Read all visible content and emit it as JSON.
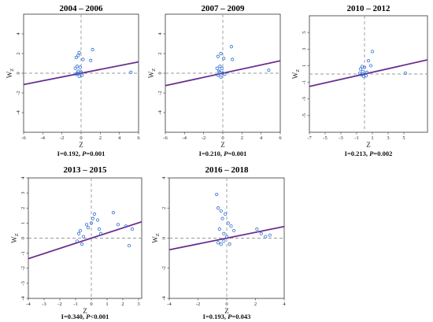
{
  "chart_data": [
    {
      "type": "scatter",
      "title": "2004 – 2006",
      "xlabel": "Z",
      "ylabel": "W",
      "ylabel_sub": "Z",
      "xlim": [
        -6,
        6
      ],
      "ylim": [
        -6,
        6
      ],
      "xticks": [
        "-6",
        "-4",
        "-2",
        "0",
        "2",
        "4",
        "6"
      ],
      "yticks": [
        "-4",
        "-2",
        "0",
        "2",
        "4"
      ],
      "ytick_values": [
        -4,
        -2,
        0,
        2,
        4
      ],
      "slope": 0.192,
      "stat_prefix": "I=0.192, ",
      "stat_p": "P",
      "stat_suffix": "=0.001",
      "points": [
        [
          -0.5,
          1.6
        ],
        [
          -0.3,
          1.8
        ],
        [
          -0.2,
          2.1
        ],
        [
          0.2,
          1.4
        ],
        [
          1.2,
          2.4
        ],
        [
          1.0,
          1.3
        ],
        [
          -0.6,
          0.5
        ],
        [
          -0.4,
          0.7
        ],
        [
          -0.1,
          0.6
        ],
        [
          -0.3,
          0.2
        ],
        [
          -0.5,
          -0.1
        ],
        [
          -0.2,
          -0.3
        ],
        [
          0.0,
          0.1
        ],
        [
          0.1,
          -0.2
        ],
        [
          -0.4,
          0.0
        ],
        [
          5.2,
          0.1
        ]
      ]
    },
    {
      "type": "scatter",
      "title": "2007 – 2009",
      "xlabel": "Z",
      "ylabel": "W",
      "ylabel_sub": "Z",
      "xlim": [
        -6,
        6
      ],
      "ylim": [
        -6,
        6
      ],
      "xticks": [
        "-6",
        "-4",
        "-2",
        "0",
        "2",
        "4",
        "6"
      ],
      "yticks": [
        "-4",
        "-2",
        "0",
        "2",
        "4"
      ],
      "ytick_values": [
        -4,
        -2,
        0,
        2,
        4
      ],
      "slope": 0.21,
      "stat_prefix": "I=0.210, ",
      "stat_p": "P",
      "stat_suffix": "=0.001",
      "points": [
        [
          -0.5,
          1.7
        ],
        [
          -0.2,
          2.0
        ],
        [
          0.1,
          1.5
        ],
        [
          0.9,
          2.7
        ],
        [
          1.0,
          1.4
        ],
        [
          -0.6,
          0.5
        ],
        [
          -0.3,
          0.7
        ],
        [
          -0.1,
          0.5
        ],
        [
          -0.3,
          0.1
        ],
        [
          -0.5,
          -0.2
        ],
        [
          -0.2,
          -0.4
        ],
        [
          0.0,
          0.0
        ],
        [
          0.2,
          -0.1
        ],
        [
          -0.4,
          0.2
        ],
        [
          4.8,
          0.3
        ]
      ]
    },
    {
      "type": "scatter",
      "title": "2010 – 2012",
      "xlabel": "Z",
      "ylabel": "W",
      "ylabel_sub": "Z",
      "xlim": [
        -7,
        8
      ],
      "ylim": [
        -7,
        7
      ],
      "xticks": [
        "-7",
        "-5",
        "-3",
        "-1",
        "1",
        "3",
        "5"
      ],
      "yticks": [
        "-5",
        "-3",
        "-1",
        "1",
        "3",
        "5"
      ],
      "ytick_values": [
        -5,
        -3,
        -1,
        1,
        3,
        5
      ],
      "slope": 0.213,
      "stat_prefix": "I=0.213, ",
      "stat_p": "P",
      "stat_suffix": "=0.002",
      "points": [
        [
          1.0,
          2.7
        ],
        [
          0.5,
          1.6
        ],
        [
          0.8,
          1.0
        ],
        [
          -0.3,
          0.9
        ],
        [
          0.0,
          0.8
        ],
        [
          -0.5,
          0.6
        ],
        [
          -0.2,
          0.3
        ],
        [
          0.3,
          0.2
        ],
        [
          -0.6,
          0.1
        ],
        [
          -0.4,
          -0.1
        ],
        [
          -0.1,
          -0.3
        ],
        [
          0.2,
          -0.2
        ],
        [
          5.2,
          0.1
        ]
      ]
    },
    {
      "type": "scatter",
      "title": "2013 – 2015",
      "xlabel": "Z",
      "ylabel": "W",
      "ylabel_sub": "Z",
      "xlim": [
        -4,
        3.2
      ],
      "ylim": [
        -4,
        4
      ],
      "xticks": [
        "-4",
        "-3",
        "-2",
        "-1",
        "0",
        "1",
        "2",
        "3"
      ],
      "yticks": [
        "-4",
        "-3",
        "-2",
        "-1",
        "0",
        "1",
        "2",
        "3",
        "4"
      ],
      "ytick_values": [
        -4,
        -3,
        -2,
        -1,
        0,
        1,
        2,
        3,
        4
      ],
      "slope": 0.34,
      "stat_prefix": "I=0.340, ",
      "stat_p": "P",
      "stat_suffix": "<0.001",
      "points": [
        [
          -0.7,
          0.5
        ],
        [
          -0.8,
          0.3
        ],
        [
          -0.9,
          -0.2
        ],
        [
          -0.6,
          -0.4
        ],
        [
          -0.5,
          0.1
        ],
        [
          -0.3,
          0.9
        ],
        [
          -0.2,
          0.7
        ],
        [
          0.0,
          1.0
        ],
        [
          0.1,
          1.3
        ],
        [
          0.2,
          1.6
        ],
        [
          0.4,
          1.2
        ],
        [
          0.5,
          0.6
        ],
        [
          0.6,
          0.3
        ],
        [
          1.4,
          1.7
        ],
        [
          1.7,
          0.9
        ],
        [
          2.2,
          0.8
        ],
        [
          2.4,
          -0.5
        ],
        [
          2.6,
          0.6
        ]
      ]
    },
    {
      "type": "scatter",
      "title": "2016 – 2018",
      "xlabel": "Z",
      "ylabel": "W",
      "ylabel_sub": "Z",
      "xlim": [
        -4,
        4
      ],
      "ylim": [
        -4,
        4
      ],
      "xticks": [
        "-4",
        "-2",
        "0",
        "2",
        "4"
      ],
      "yticks": [
        "-4",
        "-2",
        "0",
        "2",
        "4"
      ],
      "ytick_values": [
        -4,
        -2,
        0,
        2,
        4
      ],
      "slope": 0.193,
      "stat_prefix": "I=0.193, ",
      "stat_p": "P",
      "stat_suffix": "=0.043",
      "points": [
        [
          -0.7,
          2.9
        ],
        [
          -0.6,
          2.0
        ],
        [
          -0.4,
          1.8
        ],
        [
          -0.3,
          1.3
        ],
        [
          -0.1,
          1.6
        ],
        [
          0.1,
          1.0
        ],
        [
          0.3,
          0.8
        ],
        [
          0.5,
          0.5
        ],
        [
          -0.5,
          0.6
        ],
        [
          -0.2,
          0.3
        ],
        [
          0.0,
          0.1
        ],
        [
          -0.6,
          -0.3
        ],
        [
          -0.4,
          -0.4
        ],
        [
          -0.2,
          -0.2
        ],
        [
          0.2,
          -0.4
        ],
        [
          2.1,
          0.6
        ],
        [
          2.4,
          0.3
        ],
        [
          2.7,
          0.1
        ],
        [
          3.0,
          0.2
        ]
      ]
    }
  ]
}
